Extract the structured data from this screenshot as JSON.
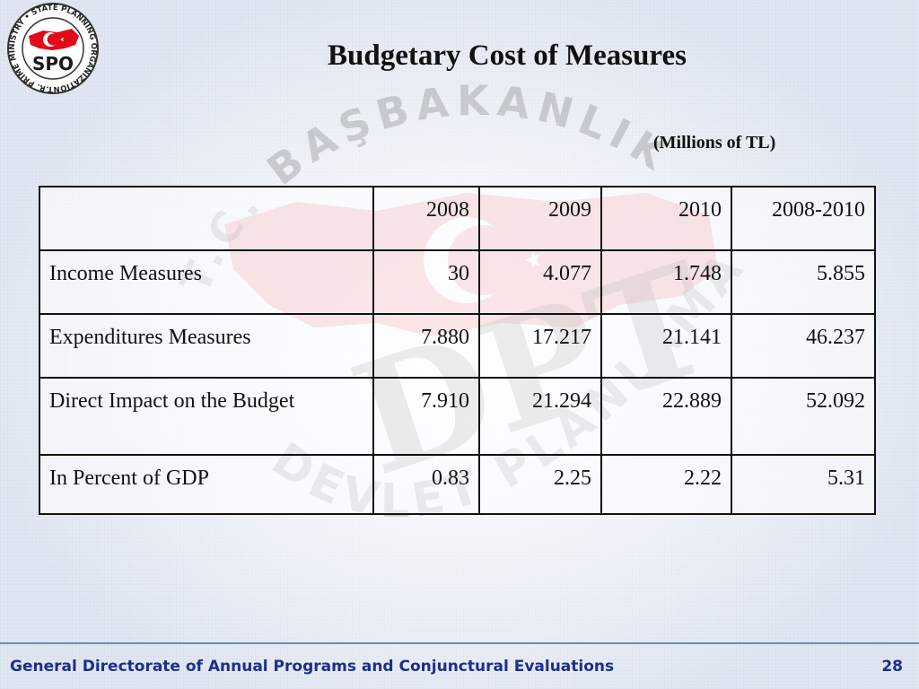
{
  "slide": {
    "title": "Budgetary Cost of  Measures",
    "units": "(Millions of   TL)",
    "logo": {
      "text": "SPO",
      "ring_text": "T.R. PRIME MINISTRY • STATE PLANNING ORGANIZATION"
    },
    "watermark": {
      "top_arc": "T.C. BAŞBAKANLIK",
      "center": "DPT",
      "bottom_arc": "DEVLET PLANLAMA TEŞKİLATI"
    }
  },
  "table": {
    "headers": [
      "",
      "2008",
      "2009",
      "2010",
      "2008-2010"
    ],
    "rows": [
      {
        "label": "Income Measures",
        "values": [
          "30",
          "4.077",
          "1.748",
          "5.855"
        ]
      },
      {
        "label": "Expenditures Measures",
        "values": [
          "7.880",
          "17.217",
          "21.141",
          "46.237"
        ]
      },
      {
        "label": "Direct Impact on the Budget",
        "values": [
          "7.910",
          "21.294",
          "22.889",
          "52.092"
        ]
      },
      {
        "label": "In Percent of  GDP",
        "values": [
          "0.83",
          "2.25",
          "2.22",
          "5.31"
        ]
      }
    ]
  },
  "footer": {
    "text": "General Directorate of Annual Programs and Conjunctural Evaluations",
    "page": "28"
  },
  "colors": {
    "footer_text": "#1b2f8c",
    "footer_line": "#6d88c4",
    "flag_red": "#e30a17"
  }
}
